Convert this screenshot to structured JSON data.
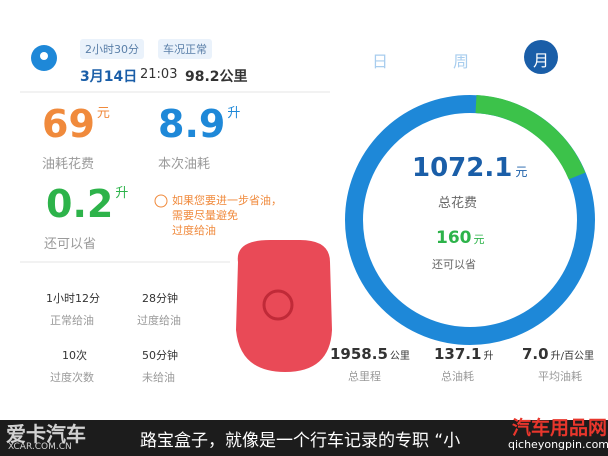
{
  "header": {
    "tags": [
      "2小时30分",
      "车况正常"
    ],
    "date": "3月14日",
    "time": "21:03",
    "distance": "98.2公里"
  },
  "tabs": [
    "日",
    "周",
    "月"
  ],
  "metrics": [
    {
      "value": "69",
      "unit": "元",
      "label": "油耗花费"
    },
    {
      "value": "8.9",
      "unit": "升",
      "label": "本次油耗"
    },
    {
      "value": "0.2",
      "unit": "升",
      "label": "还可以省"
    }
  ],
  "tip": [
    "如果您要进一步省油，",
    "需要尽量避免",
    "过度给油"
  ],
  "stats": [
    {
      "value": "1小时12分",
      "label": "正常给油"
    },
    {
      "value": "28分钟",
      "label": "过度给油"
    },
    {
      "value": "10次",
      "label": "过度次数"
    },
    {
      "value": "50分钟",
      "label": "未给油"
    }
  ],
  "ring": {
    "total": {
      "value": "1072.1",
      "unit": "元",
      "label": "总花费"
    },
    "saving": {
      "value": "160",
      "unit": "元",
      "label": "还可以省"
    }
  },
  "summary": [
    {
      "value": "1958.5",
      "unit": "公里",
      "label": "总里程"
    },
    {
      "value": "137.1",
      "unit": "升",
      "label": "总油耗"
    },
    {
      "value": "7.0",
      "unit": "升/百公里",
      "label": "平均油耗"
    }
  ],
  "caption": "路宝盒子，就像是一个行车记录的专职 “小",
  "watermarks": {
    "left": "爱卡汽车",
    "left_url": "XCAR.COM.CN",
    "right": "汽车用品网",
    "right_url": "qicheyongpin.com"
  }
}
